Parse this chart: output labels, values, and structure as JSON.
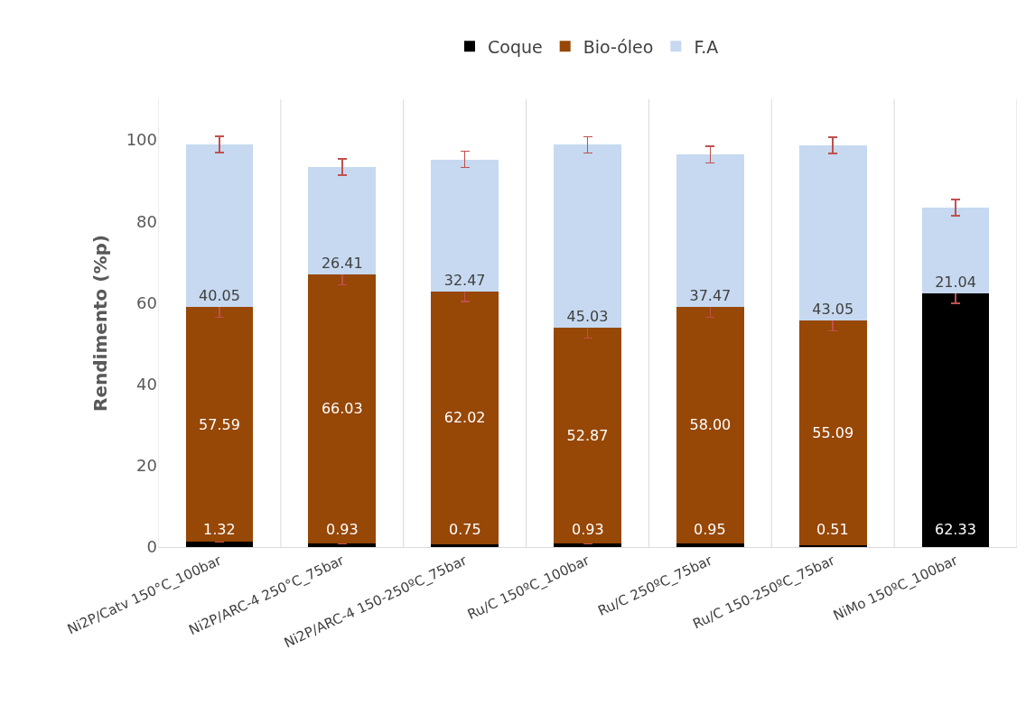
{
  "chart_data": {
    "type": "bar",
    "stacked": true,
    "ylabel": "Rendimento (%p)",
    "categories": [
      "Ni2P/Catv 150°C_100bar",
      "Ni2P/ARC-4 250°C_75bar",
      "Ni2P/ARC-4 150-250ºC_75bar",
      "Ru/C 150ºC_100bar",
      "Ru/C 250ºC_75bar",
      "Ru/C 150-250ºC_75bar",
      "NiMo 150ºC_100bar"
    ],
    "series": [
      {
        "name": "Coque",
        "color": "#000000",
        "values": [
          1.32,
          0.93,
          0.75,
          0.93,
          0.95,
          0.51,
          62.33
        ],
        "value_labels": [
          "1.32",
          "0.93",
          "0.75",
          "0.93",
          "0.95",
          "0.51",
          "62.33"
        ],
        "errors": [
          null,
          null,
          null,
          null,
          null,
          null,
          2.5
        ]
      },
      {
        "name": "Bio-óleo",
        "color": "#974706",
        "values": [
          57.59,
          66.03,
          62.02,
          52.87,
          58.0,
          55.09,
          null
        ],
        "value_labels": [
          "57.59",
          "66.03",
          "62.02",
          "52.87",
          "58.00",
          "55.09",
          null
        ],
        "errors": [
          2.5,
          2.5,
          2.5,
          2.5,
          2.5,
          2.5,
          null
        ]
      },
      {
        "name": "F.A",
        "color": "#c6d9f0",
        "values": [
          40.05,
          26.41,
          32.47,
          45.03,
          37.47,
          43.05,
          21.04
        ],
        "value_labels": [
          "40.05",
          "26.41",
          "32.47",
          "45.03",
          "37.47",
          "43.05",
          "21.04"
        ],
        "errors": [
          2,
          2,
          2,
          2,
          2,
          2,
          2
        ]
      }
    ],
    "ylim": [
      0,
      110
    ],
    "yticks": [
      0,
      20,
      40,
      60,
      80,
      100
    ],
    "grid": "x",
    "legend": "top"
  }
}
